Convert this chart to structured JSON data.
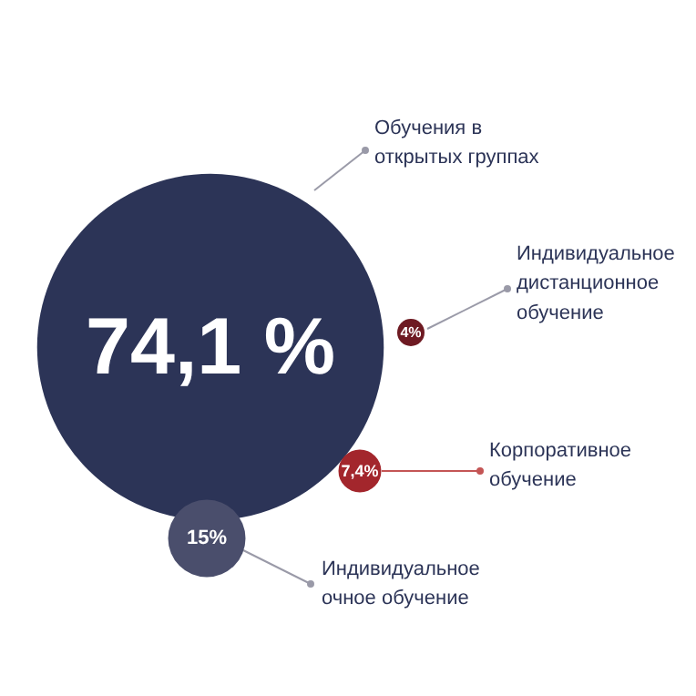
{
  "chart_data": {
    "type": "other",
    "categories": [
      "Обучения в\nоткрытых группах",
      "Индивидуальное\nдистанционное\nобучение",
      "Корпоративное\nобучение",
      "Индивидуальное\nочное обучение"
    ],
    "values": [
      74.1,
      4,
      7.4,
      15
    ],
    "value_labels": [
      "74,1 %",
      "4%",
      "7,4%",
      "15%"
    ],
    "colors": [
      "#2c3457",
      "#6e1a22",
      "#a3262c",
      "#4a4e6c"
    ]
  }
}
